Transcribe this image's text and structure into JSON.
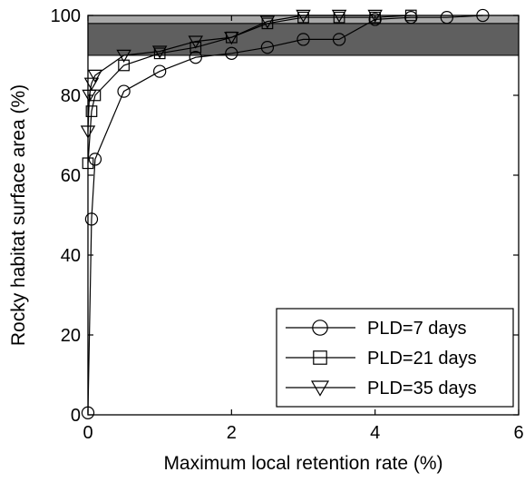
{
  "chart_data": {
    "type": "line",
    "title": "",
    "xlabel": "Maximum local retention rate (%)",
    "ylabel": "Rocky habitat surface area (%)",
    "xlim": [
      0,
      6
    ],
    "ylim": [
      0,
      100
    ],
    "xticks": [
      0,
      2,
      4,
      6
    ],
    "yticks": [
      0,
      20,
      40,
      60,
      80,
      100
    ],
    "grid": false,
    "legend_position": "bottom-right",
    "bands": [
      {
        "y_from": 90,
        "y_to": 98,
        "color": "#5f5f5f"
      },
      {
        "y_from": 98,
        "y_to": 100,
        "color": "#a8a8a8"
      }
    ],
    "series": [
      {
        "name": "PLD=7 days",
        "marker": "circle",
        "color": "#000000",
        "x": [
          0,
          0.05,
          0.1,
          0.5,
          1.0,
          1.5,
          2.0,
          2.5,
          3.0,
          3.5,
          4.0,
          4.5,
          5.0,
          5.5
        ],
        "y": [
          0.5,
          49,
          64,
          81,
          86,
          89.5,
          90.5,
          92,
          94,
          94,
          99,
          99.5,
          99.5,
          100
        ]
      },
      {
        "name": "PLD=21 days",
        "marker": "square",
        "color": "#000000",
        "x": [
          0,
          0.05,
          0.1,
          0.5,
          1.0,
          1.5,
          2.0,
          2.5,
          3.0,
          3.5,
          4.0,
          4.5
        ],
        "y": [
          63,
          76,
          80,
          87.5,
          90.5,
          92,
          94.5,
          98,
          99.5,
          99.5,
          99.5,
          100
        ]
      },
      {
        "name": "PLD=35 days",
        "marker": "triangle-down",
        "color": "#000000",
        "x": [
          0,
          0.02,
          0.05,
          0.1,
          0.5,
          1.0,
          1.5,
          2.0,
          2.5,
          3.0,
          3.5,
          4.0
        ],
        "y": [
          71,
          80,
          83,
          85,
          90,
          91,
          93.5,
          94.5,
          98.5,
          100,
          100,
          100
        ]
      }
    ]
  }
}
